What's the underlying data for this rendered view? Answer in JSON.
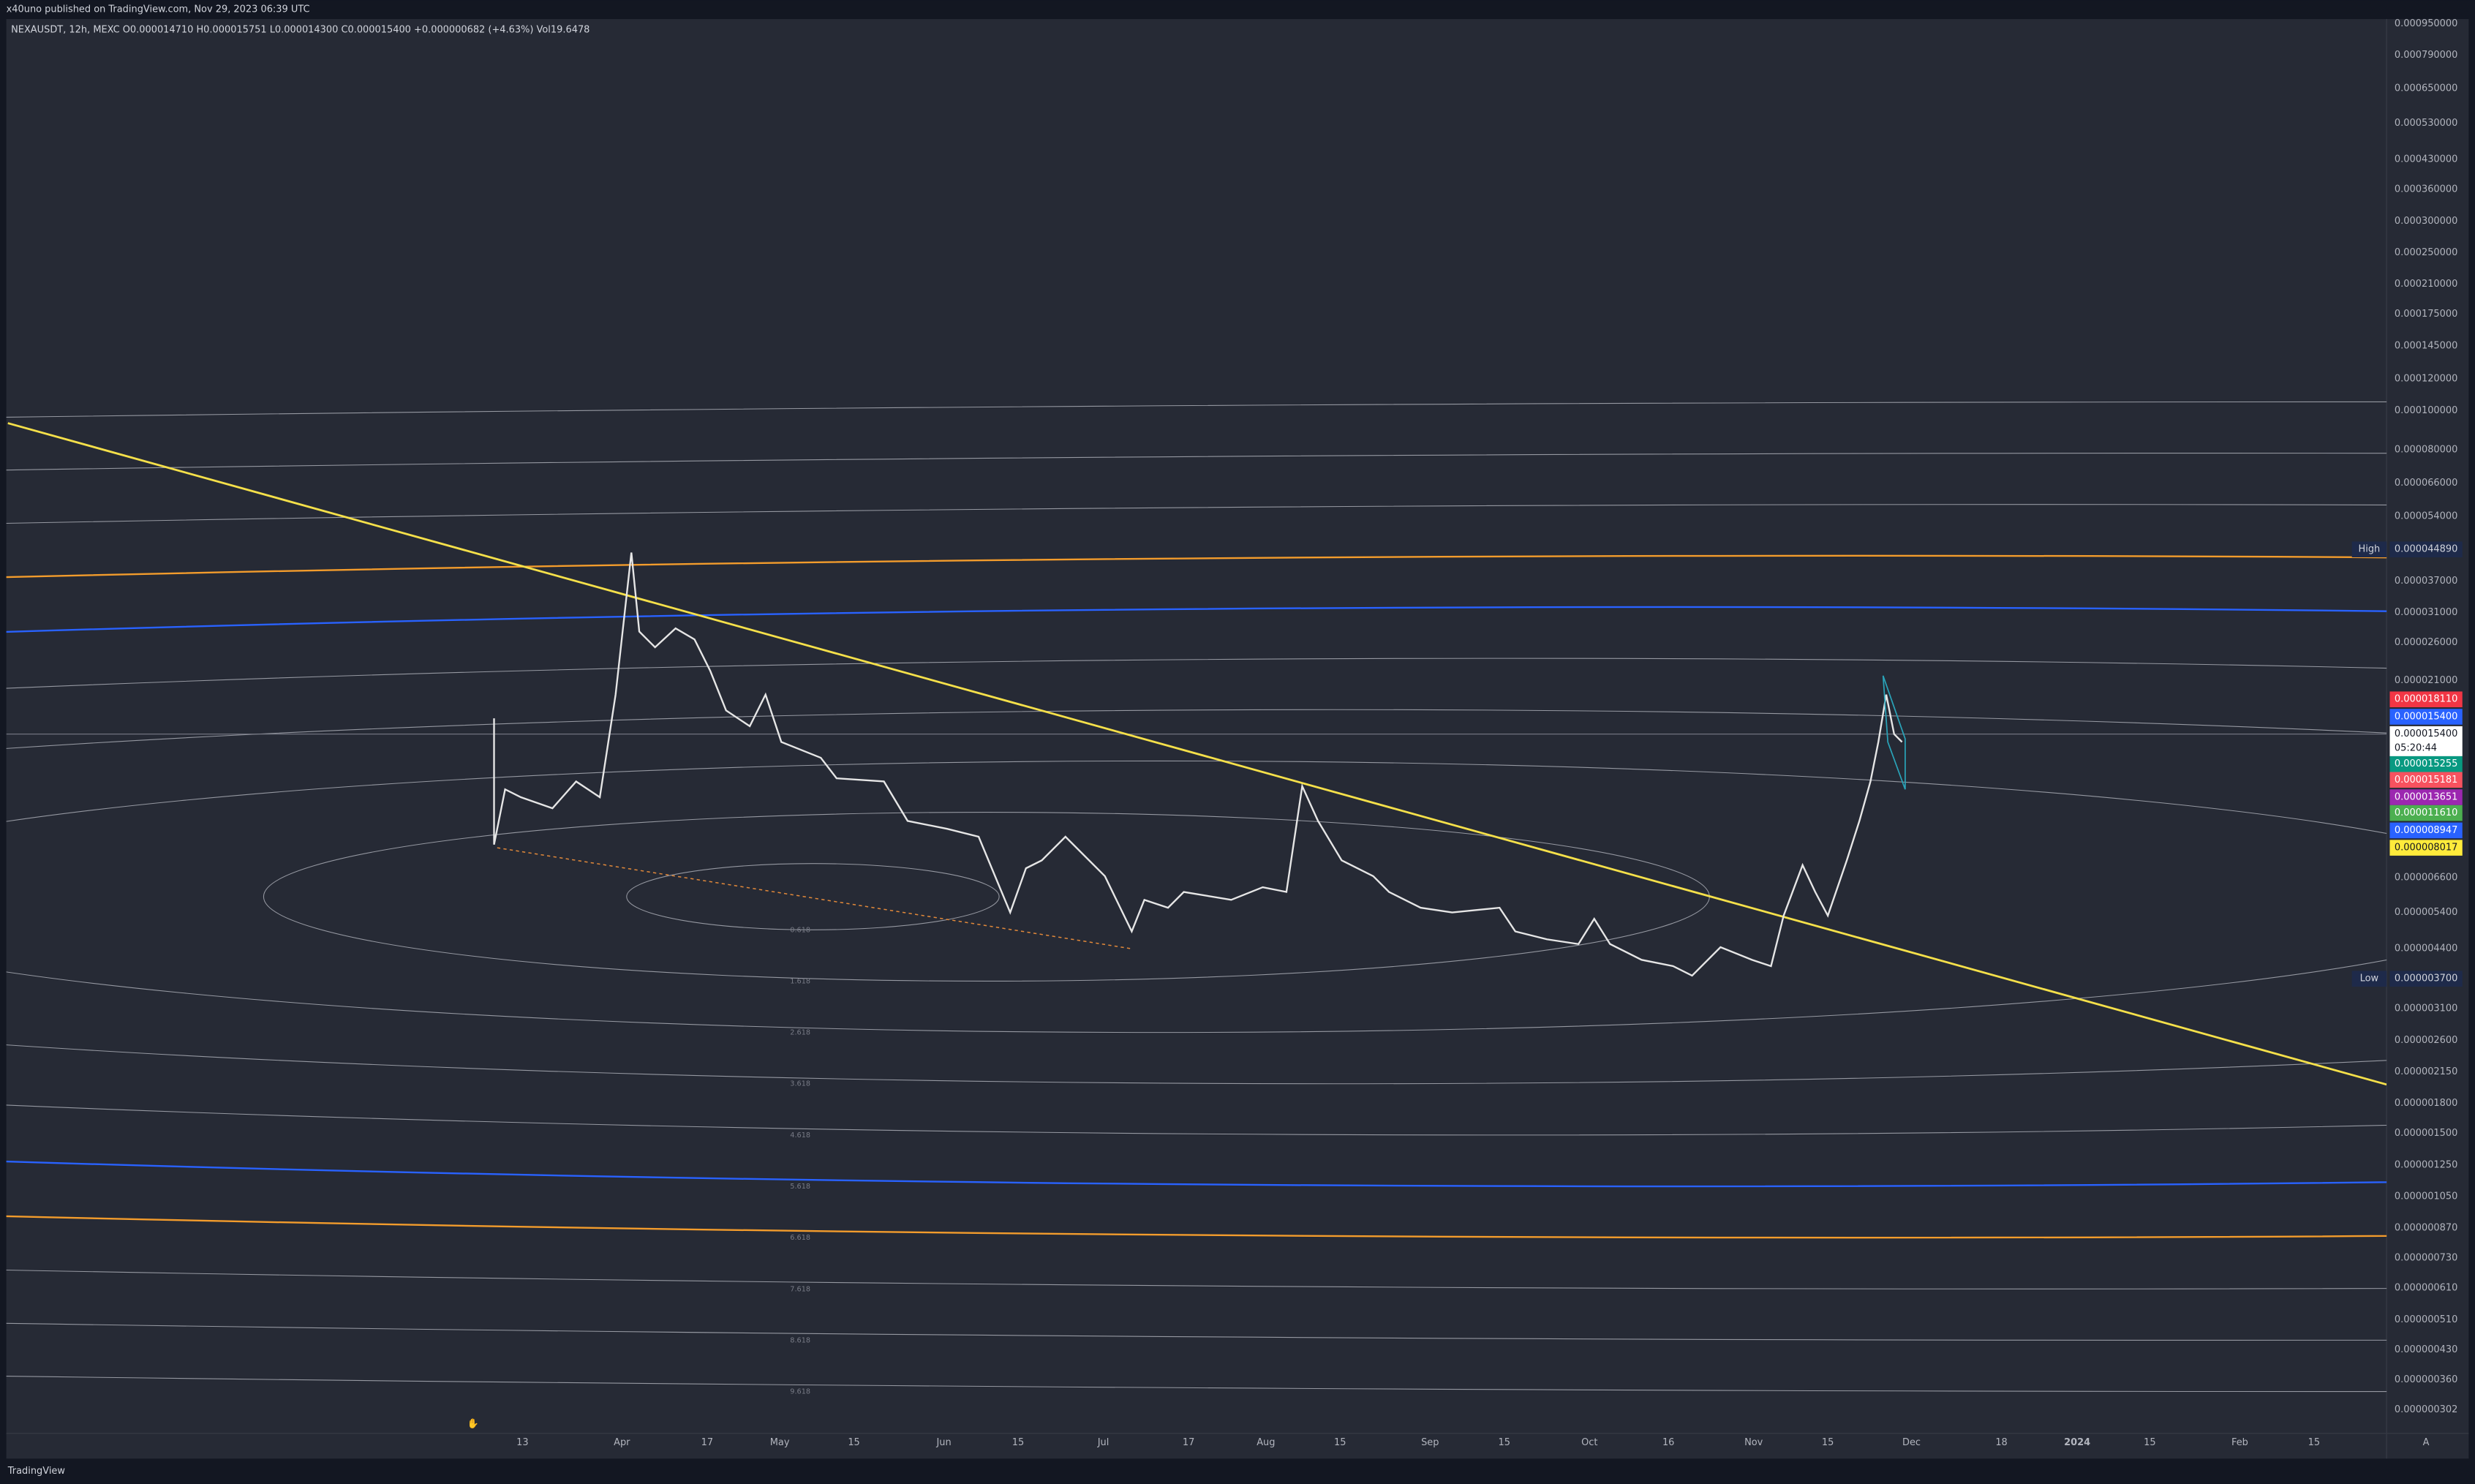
{
  "header": {
    "publisher": "x40uno published on TradingView.com, Nov 29, 2023 06:39 UTC",
    "symbol_line": "NEXAUSDT, 12h, MEXC  O0.000014710  H0.000015751  L0.000014300  C0.000015400  +0.000000682 (+4.63%)  Vol19.6478"
  },
  "price_axis": {
    "labels": [
      "0.000950000",
      "0.000790000",
      "0.000650000",
      "0.000530000",
      "0.000430000",
      "0.000360000",
      "0.000300000",
      "0.000250000",
      "0.000210000",
      "0.000175000",
      "0.000145000",
      "0.000120000",
      "0.000100000",
      "0.000080000",
      "0.000066000",
      "0.000054000",
      "0.000037000",
      "0.000031000",
      "0.000026000",
      "0.000021000",
      "0.000006600",
      "0.000005400",
      "0.000004400",
      "0.000003100",
      "0.000002600",
      "0.000002150",
      "0.000001800",
      "0.000001500",
      "0.000001250",
      "0.000001050",
      "0.000000870",
      "0.000000730",
      "0.000000610",
      "0.000000510",
      "0.000000430",
      "0.000000360",
      "0.000000302"
    ]
  },
  "high": {
    "label": "High",
    "value": "0.000044890"
  },
  "low": {
    "label": "Low",
    "value": "0.000003700"
  },
  "price_tags": [
    {
      "value": "0.000018110",
      "color": "#f23645"
    },
    {
      "value": "0.000015400",
      "color": "#2962ff"
    },
    {
      "value": "0.000015400",
      "color": "#ffffff"
    },
    {
      "value": "0.000015255",
      "color": "#089981"
    },
    {
      "value": "0.000015181",
      "color": "#f7525f"
    },
    {
      "value": "0.000013651",
      "color": "#9c27b0"
    },
    {
      "value": "0.000011610",
      "color": "#4caf50"
    },
    {
      "value": "0.000008947",
      "color": "#2962ff"
    },
    {
      "value": "0.000008017",
      "color": "#ffeb3b"
    }
  ],
  "countdown": "05:20:44",
  "time_axis": {
    "labels": [
      "13",
      "Apr",
      "17",
      "May",
      "15",
      "Jun",
      "15",
      "Jul",
      "17",
      "Aug",
      "15",
      "Sep",
      "15",
      "Oct",
      "16",
      "Nov",
      "15",
      "Dec",
      "18",
      "2024",
      "15",
      "Feb",
      "15"
    ]
  },
  "fib_labels": [
    "0.618",
    "1.618",
    "2.618",
    "3.618",
    "4.618",
    "5.618",
    "6.618",
    "7.618",
    "8.618",
    "9.618"
  ],
  "corner": "A",
  "footer": {
    "brand": "TradingView"
  }
}
